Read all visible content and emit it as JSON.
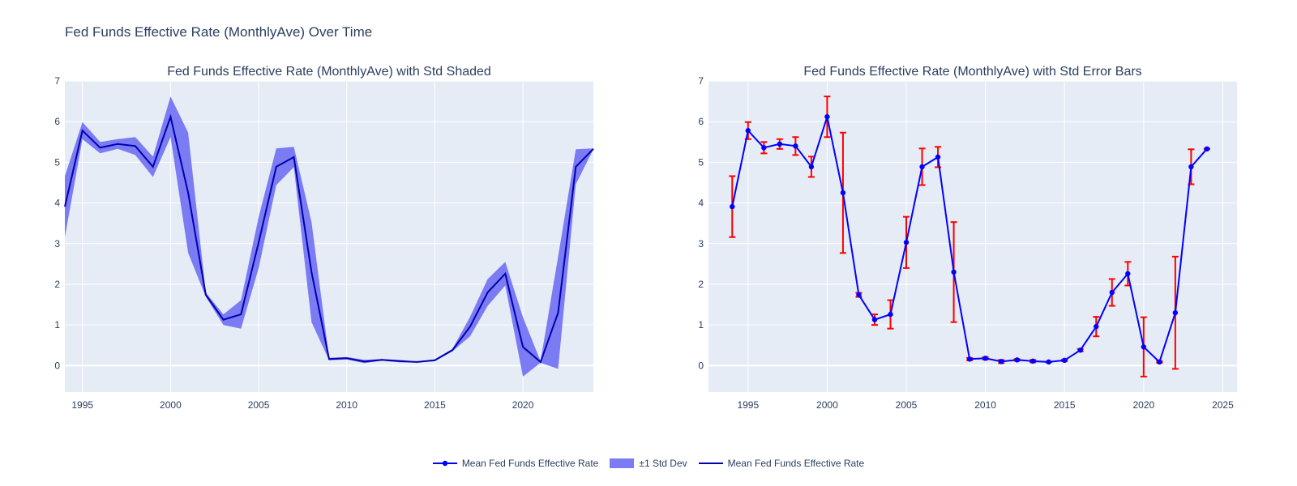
{
  "main_title": "Fed Funds Effective Rate (MonthlyAve) Over Time",
  "colors": {
    "band": "#7b7bf3",
    "mean_dark": "#0000b0",
    "mean_blue": "#0000ff",
    "error": "#ff0000"
  },
  "legend": [
    {
      "label": "Mean Fed Funds Effective Rate",
      "symbol": "line-marker"
    },
    {
      "label": "±1 Std Dev",
      "symbol": "fill"
    },
    {
      "label": "Mean Fed Funds Effective Rate",
      "symbol": "line"
    }
  ],
  "chart_data": [
    {
      "type": "area",
      "title": "Fed Funds Effective Rate (MonthlyAve) with Std Shaded",
      "xlim": [
        1994,
        2024
      ],
      "ylim": [
        -0.65,
        7
      ],
      "xticks": [
        1995,
        2000,
        2005,
        2010,
        2015,
        2020
      ],
      "yticks": [
        0,
        1,
        2,
        3,
        4,
        5,
        6,
        7
      ],
      "x": [
        1994,
        1995,
        1996,
        1997,
        1998,
        1999,
        2000,
        2001,
        2002,
        2003,
        2004,
        2005,
        2006,
        2007,
        2008,
        2009,
        2010,
        2011,
        2012,
        2013,
        2014,
        2015,
        2016,
        2017,
        2018,
        2019,
        2020,
        2021,
        2022,
        2023,
        2024
      ],
      "series": [
        {
          "role": "mean",
          "values": [
            3.91,
            5.78,
            5.36,
            5.45,
            5.4,
            4.89,
            6.12,
            4.25,
            1.74,
            1.13,
            1.26,
            3.03,
            4.89,
            5.13,
            2.3,
            0.16,
            0.18,
            0.1,
            0.14,
            0.11,
            0.09,
            0.13,
            0.38,
            0.96,
            1.8,
            2.26,
            0.46,
            0.09,
            1.3,
            4.89,
            5.33
          ]
        },
        {
          "role": "std",
          "values": [
            0.75,
            0.21,
            0.14,
            0.12,
            0.22,
            0.25,
            0.5,
            1.48,
            0.05,
            0.13,
            0.35,
            0.63,
            0.45,
            0.25,
            1.23,
            0.03,
            0.03,
            0.04,
            0.02,
            0.03,
            0.01,
            0.02,
            0.03,
            0.24,
            0.33,
            0.29,
            0.73,
            0.02,
            1.38,
            0.43,
            0.01
          ]
        }
      ]
    },
    {
      "type": "line",
      "title": "Fed Funds Effective Rate (MonthlyAve) with Std Error Bars",
      "xlim": [
        1992.5,
        2025.9
      ],
      "ylim": [
        -0.65,
        7
      ],
      "xticks": [
        1995,
        2000,
        2005,
        2010,
        2015,
        2020,
        2025
      ],
      "yticks": [
        0,
        1,
        2,
        3,
        4,
        5,
        6,
        7
      ],
      "x": [
        1994,
        1995,
        1996,
        1997,
        1998,
        1999,
        2000,
        2001,
        2002,
        2003,
        2004,
        2005,
        2006,
        2007,
        2008,
        2009,
        2010,
        2011,
        2012,
        2013,
        2014,
        2015,
        2016,
        2017,
        2018,
        2019,
        2020,
        2021,
        2022,
        2023,
        2024
      ],
      "series": [
        {
          "role": "mean",
          "values": [
            3.91,
            5.78,
            5.36,
            5.45,
            5.4,
            4.89,
            6.12,
            4.25,
            1.74,
            1.13,
            1.26,
            3.03,
            4.89,
            5.13,
            2.3,
            0.16,
            0.18,
            0.1,
            0.14,
            0.11,
            0.09,
            0.13,
            0.38,
            0.96,
            1.8,
            2.26,
            0.46,
            0.09,
            1.3,
            4.89,
            5.33
          ]
        },
        {
          "role": "std",
          "values": [
            0.75,
            0.21,
            0.14,
            0.12,
            0.22,
            0.25,
            0.5,
            1.48,
            0.05,
            0.13,
            0.35,
            0.63,
            0.45,
            0.25,
            1.23,
            0.03,
            0.03,
            0.04,
            0.02,
            0.03,
            0.01,
            0.02,
            0.03,
            0.24,
            0.33,
            0.29,
            0.73,
            0.02,
            1.38,
            0.43,
            0.01
          ]
        }
      ]
    }
  ]
}
